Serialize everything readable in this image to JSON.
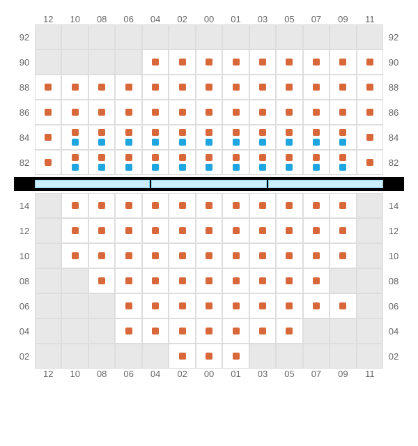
{
  "columns": [
    "12",
    "10",
    "08",
    "06",
    "04",
    "02",
    "00",
    "01",
    "03",
    "05",
    "07",
    "09",
    "11"
  ],
  "topSection": {
    "rows": [
      "92",
      "90",
      "88",
      "86",
      "84",
      "82"
    ],
    "cells": [
      [
        {
          "t": "e"
        },
        {
          "t": "e"
        },
        {
          "t": "e"
        },
        {
          "t": "e"
        },
        {
          "t": "e"
        },
        {
          "t": "e"
        },
        {
          "t": "e"
        },
        {
          "t": "e"
        },
        {
          "t": "e"
        },
        {
          "t": "e"
        },
        {
          "t": "e"
        },
        {
          "t": "e"
        },
        {
          "t": "e"
        }
      ],
      [
        {
          "t": "e"
        },
        {
          "t": "e"
        },
        {
          "t": "e"
        },
        {
          "t": "e"
        },
        {
          "t": "w",
          "m": [
            "o"
          ]
        },
        {
          "t": "w",
          "m": [
            "o"
          ]
        },
        {
          "t": "w",
          "m": [
            "o"
          ]
        },
        {
          "t": "w",
          "m": [
            "o"
          ]
        },
        {
          "t": "w",
          "m": [
            "o"
          ]
        },
        {
          "t": "w",
          "m": [
            "o"
          ]
        },
        {
          "t": "w",
          "m": [
            "o"
          ]
        },
        {
          "t": "w",
          "m": [
            "o"
          ]
        },
        {
          "t": "w",
          "m": [
            "o"
          ]
        }
      ],
      [
        {
          "t": "w",
          "m": [
            "o"
          ]
        },
        {
          "t": "w",
          "m": [
            "o"
          ]
        },
        {
          "t": "w",
          "m": [
            "o"
          ]
        },
        {
          "t": "w",
          "m": [
            "o"
          ]
        },
        {
          "t": "w",
          "m": [
            "o"
          ]
        },
        {
          "t": "w",
          "m": [
            "o"
          ]
        },
        {
          "t": "w",
          "m": [
            "o"
          ]
        },
        {
          "t": "w",
          "m": [
            "o"
          ]
        },
        {
          "t": "w",
          "m": [
            "o"
          ]
        },
        {
          "t": "w",
          "m": [
            "o"
          ]
        },
        {
          "t": "w",
          "m": [
            "o"
          ]
        },
        {
          "t": "w",
          "m": [
            "o"
          ]
        },
        {
          "t": "w",
          "m": [
            "o"
          ]
        }
      ],
      [
        {
          "t": "w",
          "m": [
            "o"
          ]
        },
        {
          "t": "w",
          "m": [
            "o"
          ]
        },
        {
          "t": "w",
          "m": [
            "o"
          ]
        },
        {
          "t": "w",
          "m": [
            "o"
          ]
        },
        {
          "t": "w",
          "m": [
            "o"
          ]
        },
        {
          "t": "w",
          "m": [
            "o"
          ]
        },
        {
          "t": "w",
          "m": [
            "o"
          ]
        },
        {
          "t": "w",
          "m": [
            "o"
          ]
        },
        {
          "t": "w",
          "m": [
            "o"
          ]
        },
        {
          "t": "w",
          "m": [
            "o"
          ]
        },
        {
          "t": "w",
          "m": [
            "o"
          ]
        },
        {
          "t": "w",
          "m": [
            "o"
          ]
        },
        {
          "t": "w",
          "m": [
            "o"
          ]
        }
      ],
      [
        {
          "t": "w",
          "m": [
            "o"
          ]
        },
        {
          "t": "w",
          "m": [
            "o",
            "b"
          ]
        },
        {
          "t": "w",
          "m": [
            "o",
            "b"
          ]
        },
        {
          "t": "w",
          "m": [
            "o",
            "b"
          ]
        },
        {
          "t": "w",
          "m": [
            "o",
            "b"
          ]
        },
        {
          "t": "w",
          "m": [
            "o",
            "b"
          ]
        },
        {
          "t": "w",
          "m": [
            "o",
            "b"
          ]
        },
        {
          "t": "w",
          "m": [
            "o",
            "b"
          ]
        },
        {
          "t": "w",
          "m": [
            "o",
            "b"
          ]
        },
        {
          "t": "w",
          "m": [
            "o",
            "b"
          ]
        },
        {
          "t": "w",
          "m": [
            "o",
            "b"
          ]
        },
        {
          "t": "w",
          "m": [
            "o",
            "b"
          ]
        },
        {
          "t": "w",
          "m": [
            "o"
          ]
        }
      ],
      [
        {
          "t": "w",
          "m": [
            "o"
          ]
        },
        {
          "t": "w",
          "m": [
            "o",
            "b"
          ]
        },
        {
          "t": "w",
          "m": [
            "o",
            "b"
          ]
        },
        {
          "t": "w",
          "m": [
            "o",
            "b"
          ]
        },
        {
          "t": "w",
          "m": [
            "o",
            "b"
          ]
        },
        {
          "t": "w",
          "m": [
            "o",
            "b"
          ]
        },
        {
          "t": "w",
          "m": [
            "o",
            "b"
          ]
        },
        {
          "t": "w",
          "m": [
            "o",
            "b"
          ]
        },
        {
          "t": "w",
          "m": [
            "o",
            "b"
          ]
        },
        {
          "t": "w",
          "m": [
            "o",
            "b"
          ]
        },
        {
          "t": "w",
          "m": [
            "o",
            "b"
          ]
        },
        {
          "t": "w",
          "m": [
            "o",
            "b"
          ]
        },
        {
          "t": "w",
          "m": [
            "o"
          ]
        }
      ]
    ]
  },
  "bottomSection": {
    "rows": [
      "14",
      "12",
      "10",
      "08",
      "06",
      "04",
      "02"
    ],
    "cells": [
      [
        {
          "t": "e"
        },
        {
          "t": "w",
          "m": [
            "o"
          ]
        },
        {
          "t": "w",
          "m": [
            "o"
          ]
        },
        {
          "t": "w",
          "m": [
            "o"
          ]
        },
        {
          "t": "w",
          "m": [
            "o"
          ]
        },
        {
          "t": "w",
          "m": [
            "o"
          ]
        },
        {
          "t": "w",
          "m": [
            "o"
          ]
        },
        {
          "t": "w",
          "m": [
            "o"
          ]
        },
        {
          "t": "w",
          "m": [
            "o"
          ]
        },
        {
          "t": "w",
          "m": [
            "o"
          ]
        },
        {
          "t": "w",
          "m": [
            "o"
          ]
        },
        {
          "t": "w",
          "m": [
            "o"
          ]
        },
        {
          "t": "e"
        }
      ],
      [
        {
          "t": "e"
        },
        {
          "t": "w",
          "m": [
            "o"
          ]
        },
        {
          "t": "w",
          "m": [
            "o"
          ]
        },
        {
          "t": "w",
          "m": [
            "o"
          ]
        },
        {
          "t": "w",
          "m": [
            "o"
          ]
        },
        {
          "t": "w",
          "m": [
            "o"
          ]
        },
        {
          "t": "w",
          "m": [
            "o"
          ]
        },
        {
          "t": "w",
          "m": [
            "o"
          ]
        },
        {
          "t": "w",
          "m": [
            "o"
          ]
        },
        {
          "t": "w",
          "m": [
            "o"
          ]
        },
        {
          "t": "w",
          "m": [
            "o"
          ]
        },
        {
          "t": "w",
          "m": [
            "o"
          ]
        },
        {
          "t": "e"
        }
      ],
      [
        {
          "t": "e"
        },
        {
          "t": "w",
          "m": [
            "o"
          ]
        },
        {
          "t": "w",
          "m": [
            "o"
          ]
        },
        {
          "t": "w",
          "m": [
            "o"
          ]
        },
        {
          "t": "w",
          "m": [
            "o"
          ]
        },
        {
          "t": "w",
          "m": [
            "o"
          ]
        },
        {
          "t": "w",
          "m": [
            "o"
          ]
        },
        {
          "t": "w",
          "m": [
            "o"
          ]
        },
        {
          "t": "w",
          "m": [
            "o"
          ]
        },
        {
          "t": "w",
          "m": [
            "o"
          ]
        },
        {
          "t": "w",
          "m": [
            "o"
          ]
        },
        {
          "t": "w",
          "m": [
            "o"
          ]
        },
        {
          "t": "e"
        }
      ],
      [
        {
          "t": "e"
        },
        {
          "t": "e"
        },
        {
          "t": "w",
          "m": [
            "o"
          ]
        },
        {
          "t": "w",
          "m": [
            "o"
          ]
        },
        {
          "t": "w",
          "m": [
            "o"
          ]
        },
        {
          "t": "w",
          "m": [
            "o"
          ]
        },
        {
          "t": "w",
          "m": [
            "o"
          ]
        },
        {
          "t": "w",
          "m": [
            "o"
          ]
        },
        {
          "t": "w",
          "m": [
            "o"
          ]
        },
        {
          "t": "w",
          "m": [
            "o"
          ]
        },
        {
          "t": "w",
          "m": [
            "o"
          ]
        },
        {
          "t": "e"
        },
        {
          "t": "e"
        }
      ],
      [
        {
          "t": "e"
        },
        {
          "t": "e"
        },
        {
          "t": "e"
        },
        {
          "t": "w",
          "m": [
            "o"
          ]
        },
        {
          "t": "w",
          "m": [
            "o"
          ]
        },
        {
          "t": "w",
          "m": [
            "o"
          ]
        },
        {
          "t": "w",
          "m": [
            "o"
          ]
        },
        {
          "t": "w",
          "m": [
            "o"
          ]
        },
        {
          "t": "w",
          "m": [
            "o"
          ]
        },
        {
          "t": "w",
          "m": [
            "o"
          ]
        },
        {
          "t": "w",
          "m": [
            "o"
          ]
        },
        {
          "t": "w",
          "m": [
            "o"
          ]
        },
        {
          "t": "e"
        }
      ],
      [
        {
          "t": "e"
        },
        {
          "t": "e"
        },
        {
          "t": "e"
        },
        {
          "t": "w",
          "m": [
            "o"
          ]
        },
        {
          "t": "w",
          "m": [
            "o"
          ]
        },
        {
          "t": "w",
          "m": [
            "o"
          ]
        },
        {
          "t": "w",
          "m": [
            "o"
          ]
        },
        {
          "t": "w",
          "m": [
            "o"
          ]
        },
        {
          "t": "w",
          "m": [
            "o"
          ]
        },
        {
          "t": "w",
          "m": [
            "o"
          ]
        },
        {
          "t": "e"
        },
        {
          "t": "e"
        },
        {
          "t": "e"
        }
      ],
      [
        {
          "t": "e"
        },
        {
          "t": "e"
        },
        {
          "t": "e"
        },
        {
          "t": "e"
        },
        {
          "t": "e"
        },
        {
          "t": "w",
          "m": [
            "o"
          ]
        },
        {
          "t": "w",
          "m": [
            "o"
          ]
        },
        {
          "t": "w",
          "m": [
            "o"
          ]
        },
        {
          "t": "e"
        },
        {
          "t": "e"
        },
        {
          "t": "e"
        },
        {
          "t": "e"
        },
        {
          "t": "e"
        }
      ]
    ]
  },
  "dividerSegments": 3,
  "colors": {
    "orange": "#d8683a",
    "blue": "#1fa5e0",
    "emptyCell": "#e8e8e8",
    "cellBorder": "#dddddd",
    "dividerBlue": "#cceefa",
    "dividerBorder": "#8dd4f0",
    "labelText": "#666666"
  }
}
